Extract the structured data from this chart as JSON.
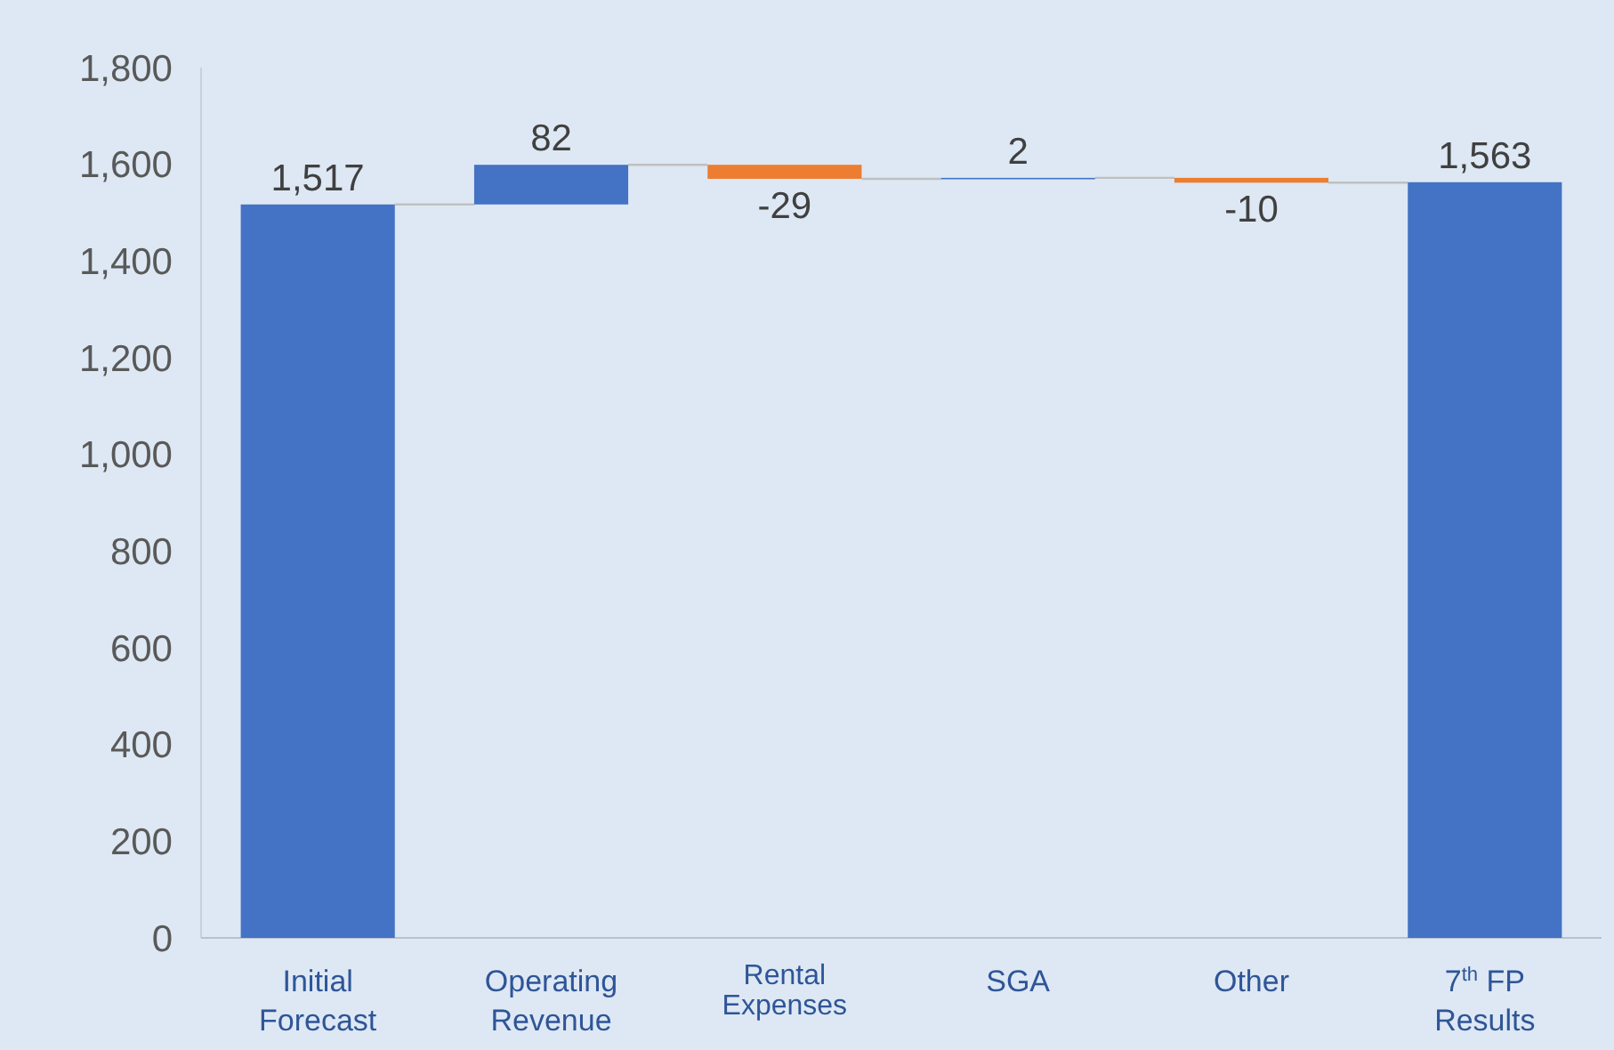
{
  "chart_data": {
    "type": "bar",
    "categories": [
      "Initial\nForecast",
      "Operating\nRevenue",
      "Rental\nExpenses",
      "SGA",
      "Other",
      "7$^{th}$ FP\nResults"
    ],
    "values": [
      1517,
      82,
      -29,
      2,
      -10,
      1563
    ],
    "base": [
      0,
      1517,
      1599,
      1570,
      1572,
      0
    ],
    "colors": [
      "#4472c4",
      "#4472c4",
      "#ed7d31",
      "#4472c4",
      "#ed7d31",
      "#4472c4"
    ],
    "value_labels": [
      "1,517",
      "82",
      "-29",
      "2",
      "-10",
      "1,563"
    ],
    "ylim": [
      0,
      1800
    ],
    "yticks": [
      {
        "value": 0,
        "label": "0"
      },
      {
        "value": 200,
        "label": "200"
      },
      {
        "value": 400,
        "label": "400"
      },
      {
        "value": 600,
        "label": "600"
      },
      {
        "value": 800,
        "label": "800"
      },
      {
        "value": 1000,
        "label": "1,000"
      },
      {
        "value": 1200,
        "label": "1,200"
      },
      {
        "value": 1400,
        "label": "1,400"
      },
      {
        "value": 1600,
        "label": "1,600"
      },
      {
        "value": 1800,
        "label": "1,800"
      }
    ],
    "grid": false
  }
}
